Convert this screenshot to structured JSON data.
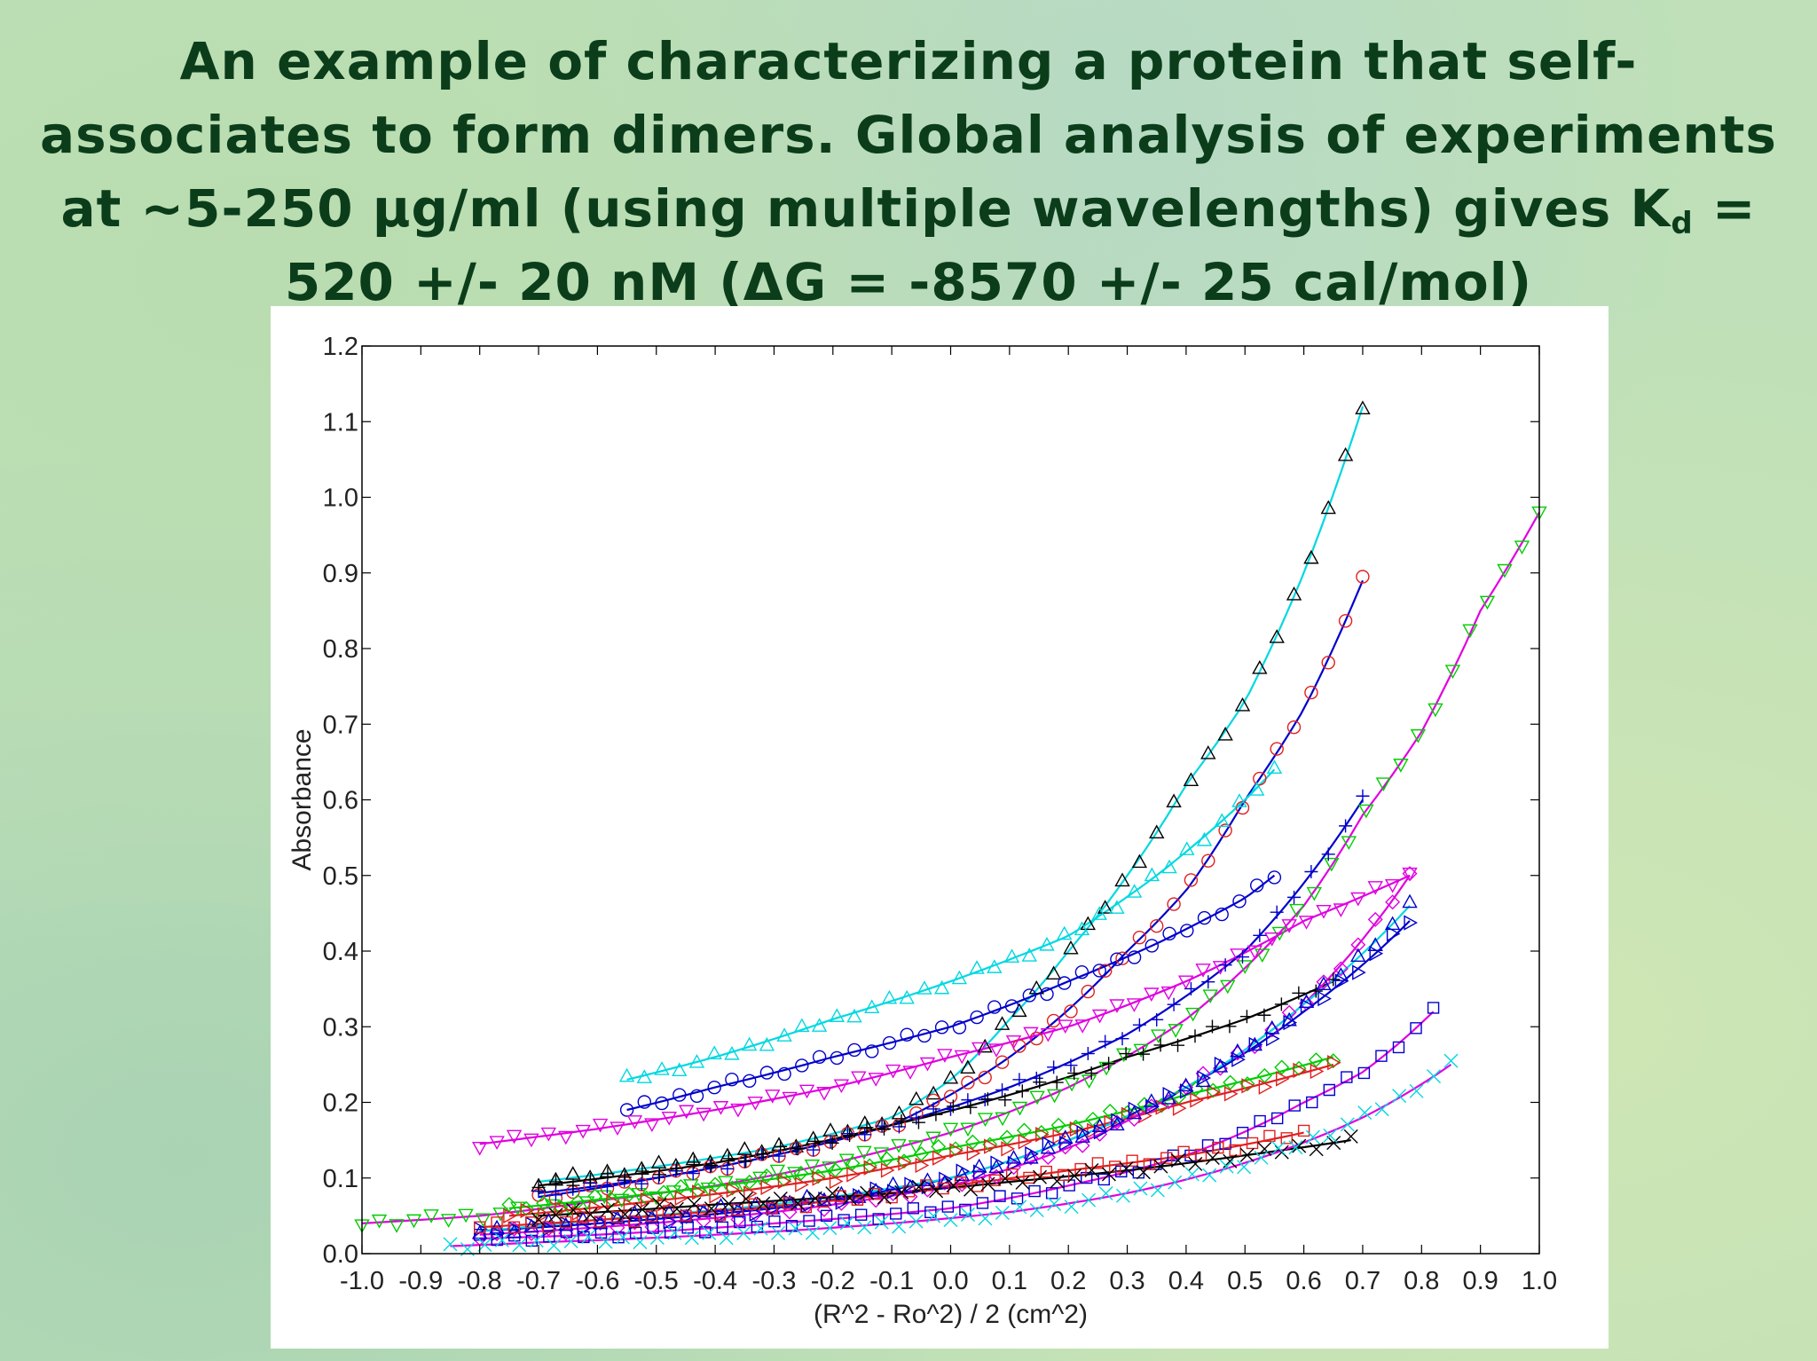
{
  "slide": {
    "title_lines": [
      "An example of characterizing a protein that self-",
      "associates to form dimers. Global analysis of experiments",
      "at ~5-250 μg/ml (using multiple wavelengths) gives K",
      "520 +/- 20 nM (ΔG = -8570 +/- 25 cal/mol)"
    ],
    "kd_subscript": "d",
    "kd_suffix": " ="
  },
  "colors": {
    "title": "#0b3d1b",
    "background": "#bfe0b8"
  },
  "chart_data": {
    "type": "scatter",
    "xlabel": "(R^2 - Ro^2) / 2   (cm^2)",
    "ylabel": "Absorbance",
    "xlim": [
      -1.0,
      1.0
    ],
    "ylim": [
      0.0,
      1.2
    ],
    "xticks": [
      "-1.0",
      "-0.9",
      "-0.8",
      "-0.7",
      "-0.6",
      "-0.5",
      "-0.4",
      "-0.3",
      "-0.2",
      "-0.1",
      "0.0",
      "0.1",
      "0.2",
      "0.3",
      "0.4",
      "0.5",
      "0.6",
      "0.7",
      "0.8",
      "0.9",
      "1.0"
    ],
    "yticks": [
      "0.0",
      "0.1",
      "0.2",
      "0.3",
      "0.4",
      "0.5",
      "0.6",
      "0.7",
      "0.8",
      "0.9",
      "1.0",
      "1.1",
      "1.2"
    ],
    "grid": false,
    "series": [
      {
        "marker": "triangle-up",
        "color": "#000000",
        "fit_color": "#00d8e0",
        "x": [
          -0.7,
          -0.5,
          -0.3,
          -0.1,
          0.0,
          0.1,
          0.2,
          0.3,
          0.4,
          0.5,
          0.6,
          0.7
        ],
        "y": [
          0.095,
          0.115,
          0.14,
          0.18,
          0.23,
          0.31,
          0.4,
          0.5,
          0.62,
          0.73,
          0.9,
          1.12
        ]
      },
      {
        "marker": "circle",
        "color": "#e02020",
        "fit_color": "#0000cc",
        "x": [
          -0.7,
          -0.5,
          -0.3,
          -0.1,
          0.1,
          0.3,
          0.4,
          0.5,
          0.6,
          0.7
        ],
        "y": [
          0.075,
          0.1,
          0.13,
          0.17,
          0.26,
          0.4,
          0.48,
          0.6,
          0.72,
          0.89
        ]
      },
      {
        "marker": "triangle-down",
        "color": "#00cc00",
        "fit_color": "#e000e0",
        "x": [
          -1.0,
          -0.8,
          -0.6,
          -0.4,
          -0.2,
          0.0,
          0.2,
          0.4,
          0.6,
          0.7,
          0.8,
          0.9,
          1.0
        ],
        "y": [
          0.04,
          0.05,
          0.07,
          0.09,
          0.12,
          0.16,
          0.22,
          0.31,
          0.46,
          0.58,
          0.69,
          0.85,
          0.98
        ]
      },
      {
        "marker": "triangle-up",
        "color": "#00d8e0",
        "fit_color": "#00d8e0",
        "x": [
          -0.55,
          -0.4,
          -0.2,
          0.0,
          0.2,
          0.35,
          0.5,
          0.55
        ],
        "y": [
          0.23,
          0.26,
          0.31,
          0.36,
          0.42,
          0.5,
          0.6,
          0.64
        ]
      },
      {
        "marker": "circle",
        "color": "#0000cc",
        "fit_color": "#0000cc",
        "x": [
          -0.55,
          -0.4,
          -0.2,
          0.0,
          0.2,
          0.35,
          0.5,
          0.55
        ],
        "y": [
          0.19,
          0.22,
          0.26,
          0.3,
          0.36,
          0.41,
          0.47,
          0.5
        ]
      },
      {
        "marker": "triangle-down",
        "color": "#e000e0",
        "fit_color": "#e000e0",
        "x": [
          -0.8,
          -0.6,
          -0.4,
          -0.2,
          0.0,
          0.2,
          0.4,
          0.6,
          0.78
        ],
        "y": [
          0.145,
          0.165,
          0.19,
          0.22,
          0.26,
          0.3,
          0.36,
          0.44,
          0.5
        ]
      },
      {
        "marker": "plus",
        "color": "#0000cc",
        "fit_color": "#0000cc",
        "x": [
          -0.7,
          -0.5,
          -0.3,
          -0.1,
          0.1,
          0.3,
          0.5,
          0.7
        ],
        "y": [
          0.08,
          0.1,
          0.13,
          0.17,
          0.22,
          0.29,
          0.4,
          0.6
        ]
      },
      {
        "marker": "plus",
        "color": "#000000",
        "fit_color": "#000000",
        "x": [
          -0.7,
          -0.4,
          -0.1,
          0.1,
          0.3,
          0.5,
          0.65
        ],
        "y": [
          0.09,
          0.12,
          0.17,
          0.21,
          0.26,
          0.31,
          0.36
        ]
      },
      {
        "marker": "diamond",
        "color": "#00cc00",
        "fit_color": "#00cc00",
        "x": [
          -0.75,
          -0.5,
          -0.2,
          0.0,
          0.2,
          0.4,
          0.65
        ],
        "y": [
          0.06,
          0.08,
          0.11,
          0.14,
          0.17,
          0.21,
          0.26
        ]
      },
      {
        "marker": "triangle-right",
        "color": "#e02020",
        "fit_color": "#e02020",
        "x": [
          -0.75,
          -0.5,
          -0.2,
          0.0,
          0.2,
          0.4,
          0.65
        ],
        "y": [
          0.05,
          0.07,
          0.1,
          0.13,
          0.16,
          0.2,
          0.25
        ]
      },
      {
        "marker": "diamond",
        "color": "#e000e0",
        "fit_color": "#e000e0",
        "x": [
          -0.8,
          -0.6,
          -0.3,
          0.0,
          0.2,
          0.4,
          0.6,
          0.78
        ],
        "y": [
          0.025,
          0.035,
          0.055,
          0.09,
          0.14,
          0.22,
          0.33,
          0.5
        ]
      },
      {
        "marker": "triangle-right",
        "color": "#0000cc",
        "fit_color": "#0000cc",
        "x": [
          -0.8,
          -0.6,
          -0.3,
          0.0,
          0.2,
          0.4,
          0.6,
          0.78
        ],
        "y": [
          0.03,
          0.04,
          0.06,
          0.1,
          0.15,
          0.22,
          0.32,
          0.44
        ]
      },
      {
        "marker": "triangle-up",
        "color": "#0000cc",
        "fit_color": "#00d8e0",
        "x": [
          -0.8,
          -0.6,
          -0.3,
          0.0,
          0.2,
          0.4,
          0.6,
          0.78
        ],
        "y": [
          0.03,
          0.045,
          0.065,
          0.1,
          0.15,
          0.22,
          0.33,
          0.46
        ]
      },
      {
        "marker": "square",
        "color": "#0000cc",
        "fit_color": "#e000e0",
        "x": [
          -0.8,
          -0.6,
          -0.3,
          0.0,
          0.2,
          0.4,
          0.6,
          0.7,
          0.82
        ],
        "y": [
          0.02,
          0.025,
          0.04,
          0.06,
          0.09,
          0.13,
          0.2,
          0.24,
          0.32
        ]
      },
      {
        "marker": "square",
        "color": "#e02020",
        "fit_color": "#e02020",
        "x": [
          -0.8,
          -0.5,
          -0.2,
          0.0,
          0.2,
          0.4,
          0.6
        ],
        "y": [
          0.035,
          0.05,
          0.07,
          0.09,
          0.11,
          0.13,
          0.16
        ]
      },
      {
        "marker": "cross",
        "color": "#000000",
        "fit_color": "#000000",
        "x": [
          -0.7,
          -0.4,
          -0.1,
          0.1,
          0.3,
          0.5,
          0.68
        ],
        "y": [
          0.05,
          0.065,
          0.08,
          0.095,
          0.11,
          0.13,
          0.15
        ]
      },
      {
        "marker": "cross",
        "color": "#00d8e0",
        "fit_color": "#e000e0",
        "x": [
          -0.85,
          -0.7,
          -0.4,
          -0.1,
          0.1,
          0.3,
          0.5,
          0.7,
          0.85
        ],
        "y": [
          0.01,
          0.015,
          0.025,
          0.04,
          0.055,
          0.08,
          0.12,
          0.18,
          0.25
        ]
      }
    ]
  }
}
